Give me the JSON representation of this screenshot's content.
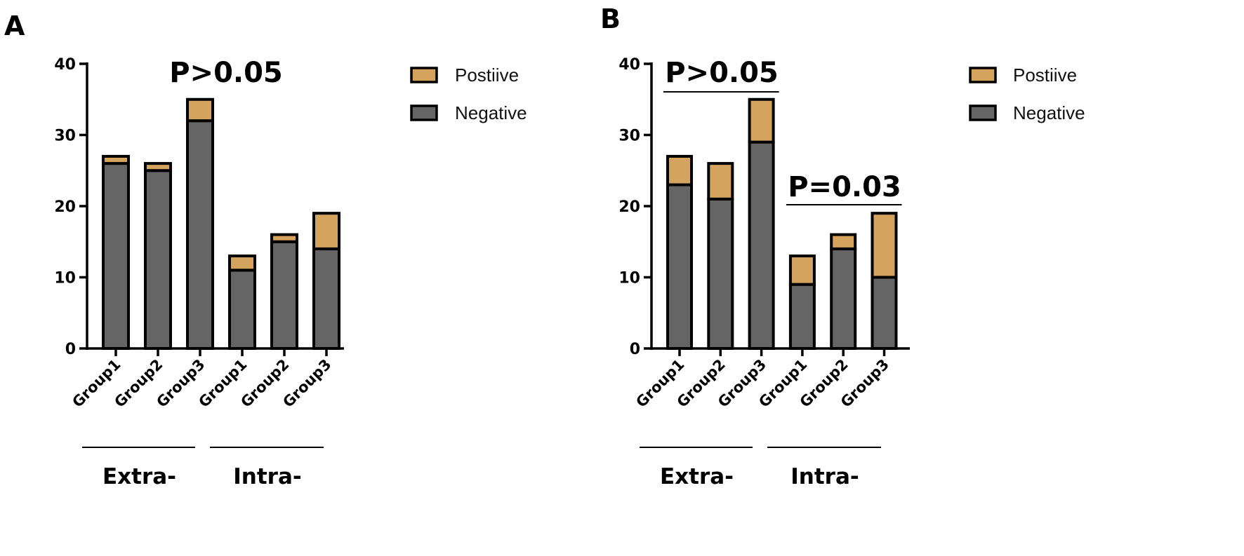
{
  "colors": {
    "positive": "#d4a35e",
    "negative": "#656565",
    "outline": "#000000"
  },
  "chart_data": [
    {
      "panel": "A",
      "type": "bar",
      "stacked": true,
      "categories": [
        "Group1",
        "Group2",
        "Group3",
        "Group1",
        "Group2",
        "Group3"
      ],
      "groups": [
        {
          "label": "Extra-",
          "categories": [
            0,
            1,
            2
          ]
        },
        {
          "label": "Intra-",
          "categories": [
            3,
            4,
            5
          ]
        }
      ],
      "series": [
        {
          "name": "Negative",
          "values": [
            26,
            25,
            32,
            11,
            15,
            14
          ]
        },
        {
          "name": "Postiive",
          "values": [
            1,
            1,
            3,
            2,
            1,
            5
          ]
        }
      ],
      "ylim": [
        0,
        40
      ],
      "yticks": [
        0,
        10,
        20,
        30,
        40
      ],
      "annotations": [
        {
          "text": "P>0.05",
          "bracket": false
        }
      ],
      "legend": [
        "Postiive",
        "Negative"
      ],
      "legend_position": "top-right"
    },
    {
      "panel": "B",
      "type": "bar",
      "stacked": true,
      "categories": [
        "Group1",
        "Group2",
        "Group3",
        "Group1",
        "Group2",
        "Group3"
      ],
      "groups": [
        {
          "label": "Extra-",
          "categories": [
            0,
            1,
            2
          ]
        },
        {
          "label": "Intra-",
          "categories": [
            3,
            4,
            5
          ]
        }
      ],
      "series": [
        {
          "name": "Negative",
          "values": [
            23,
            21,
            29,
            9,
            14,
            10
          ]
        },
        {
          "name": "Postiive",
          "values": [
            4,
            5,
            6,
            4,
            2,
            9
          ]
        }
      ],
      "ylim": [
        0,
        40
      ],
      "yticks": [
        0,
        10,
        20,
        30,
        40
      ],
      "annotations": [
        {
          "text": "P>0.05",
          "bracket": true,
          "from": 0,
          "to": 2
        },
        {
          "text": "P=0.03",
          "bracket": true,
          "from": 3,
          "to": 5
        }
      ],
      "legend": [
        "Postiive",
        "Negative"
      ],
      "legend_position": "top-right"
    }
  ]
}
